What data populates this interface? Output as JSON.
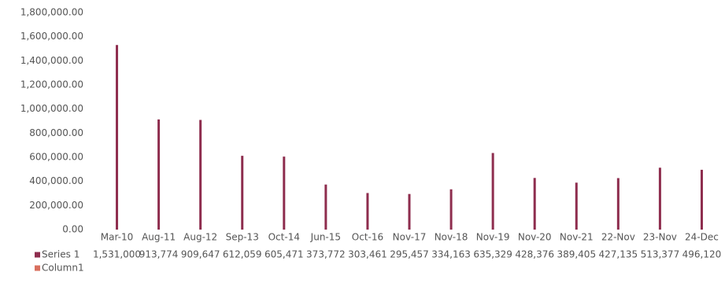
{
  "chart_data": {
    "type": "bar",
    "categories": [
      "Mar-10",
      "Aug-11",
      "Aug-12",
      "Sep-13",
      "Oct-14",
      "Jun-15",
      "Oct-16",
      "Nov-17",
      "Nov-18",
      "Nov-19",
      "Nov-20",
      "Nov-21",
      "22-Nov",
      "23-Nov",
      "24-Dec"
    ],
    "series": [
      {
        "name": "Series 1",
        "color": "#8e2d4e",
        "values": [
          1531000,
          913774,
          909647,
          612059,
          605471,
          373772,
          303461,
          295457,
          334163,
          635329,
          428376,
          389405,
          427135,
          513377,
          496120
        ],
        "value_labels": [
          "1,531,000",
          "913,774",
          "909,647",
          "612,059",
          "605,471",
          "373,772",
          "303,461",
          "295,457",
          "334,163",
          "635,329",
          "428,376",
          "389,405",
          "427,135",
          "513,377",
          "496,120"
        ]
      },
      {
        "name": "Column1",
        "color": "#d9705f",
        "values": [
          null,
          null,
          null,
          null,
          null,
          null,
          null,
          null,
          null,
          null,
          null,
          null,
          null,
          null,
          null
        ]
      }
    ],
    "ylim": [
      0,
      1800000
    ],
    "yticks": [
      {
        "value": 0,
        "label": "0.00"
      },
      {
        "value": 200000,
        "label": "200,000.00"
      },
      {
        "value": 400000,
        "label": "400,000.00"
      },
      {
        "value": 600000,
        "label": "600,000.00"
      },
      {
        "value": 800000,
        "label": "800,000.00"
      },
      {
        "value": 1000000,
        "label": "1,000,000.00"
      },
      {
        "value": 1200000,
        "label": "1,200,000.00"
      },
      {
        "value": 1400000,
        "label": "1,400,000.00"
      },
      {
        "value": 1600000,
        "label": "1,600,000.00"
      },
      {
        "value": 1800000,
        "label": "1,800,000.00"
      }
    ],
    "grid": false
  }
}
